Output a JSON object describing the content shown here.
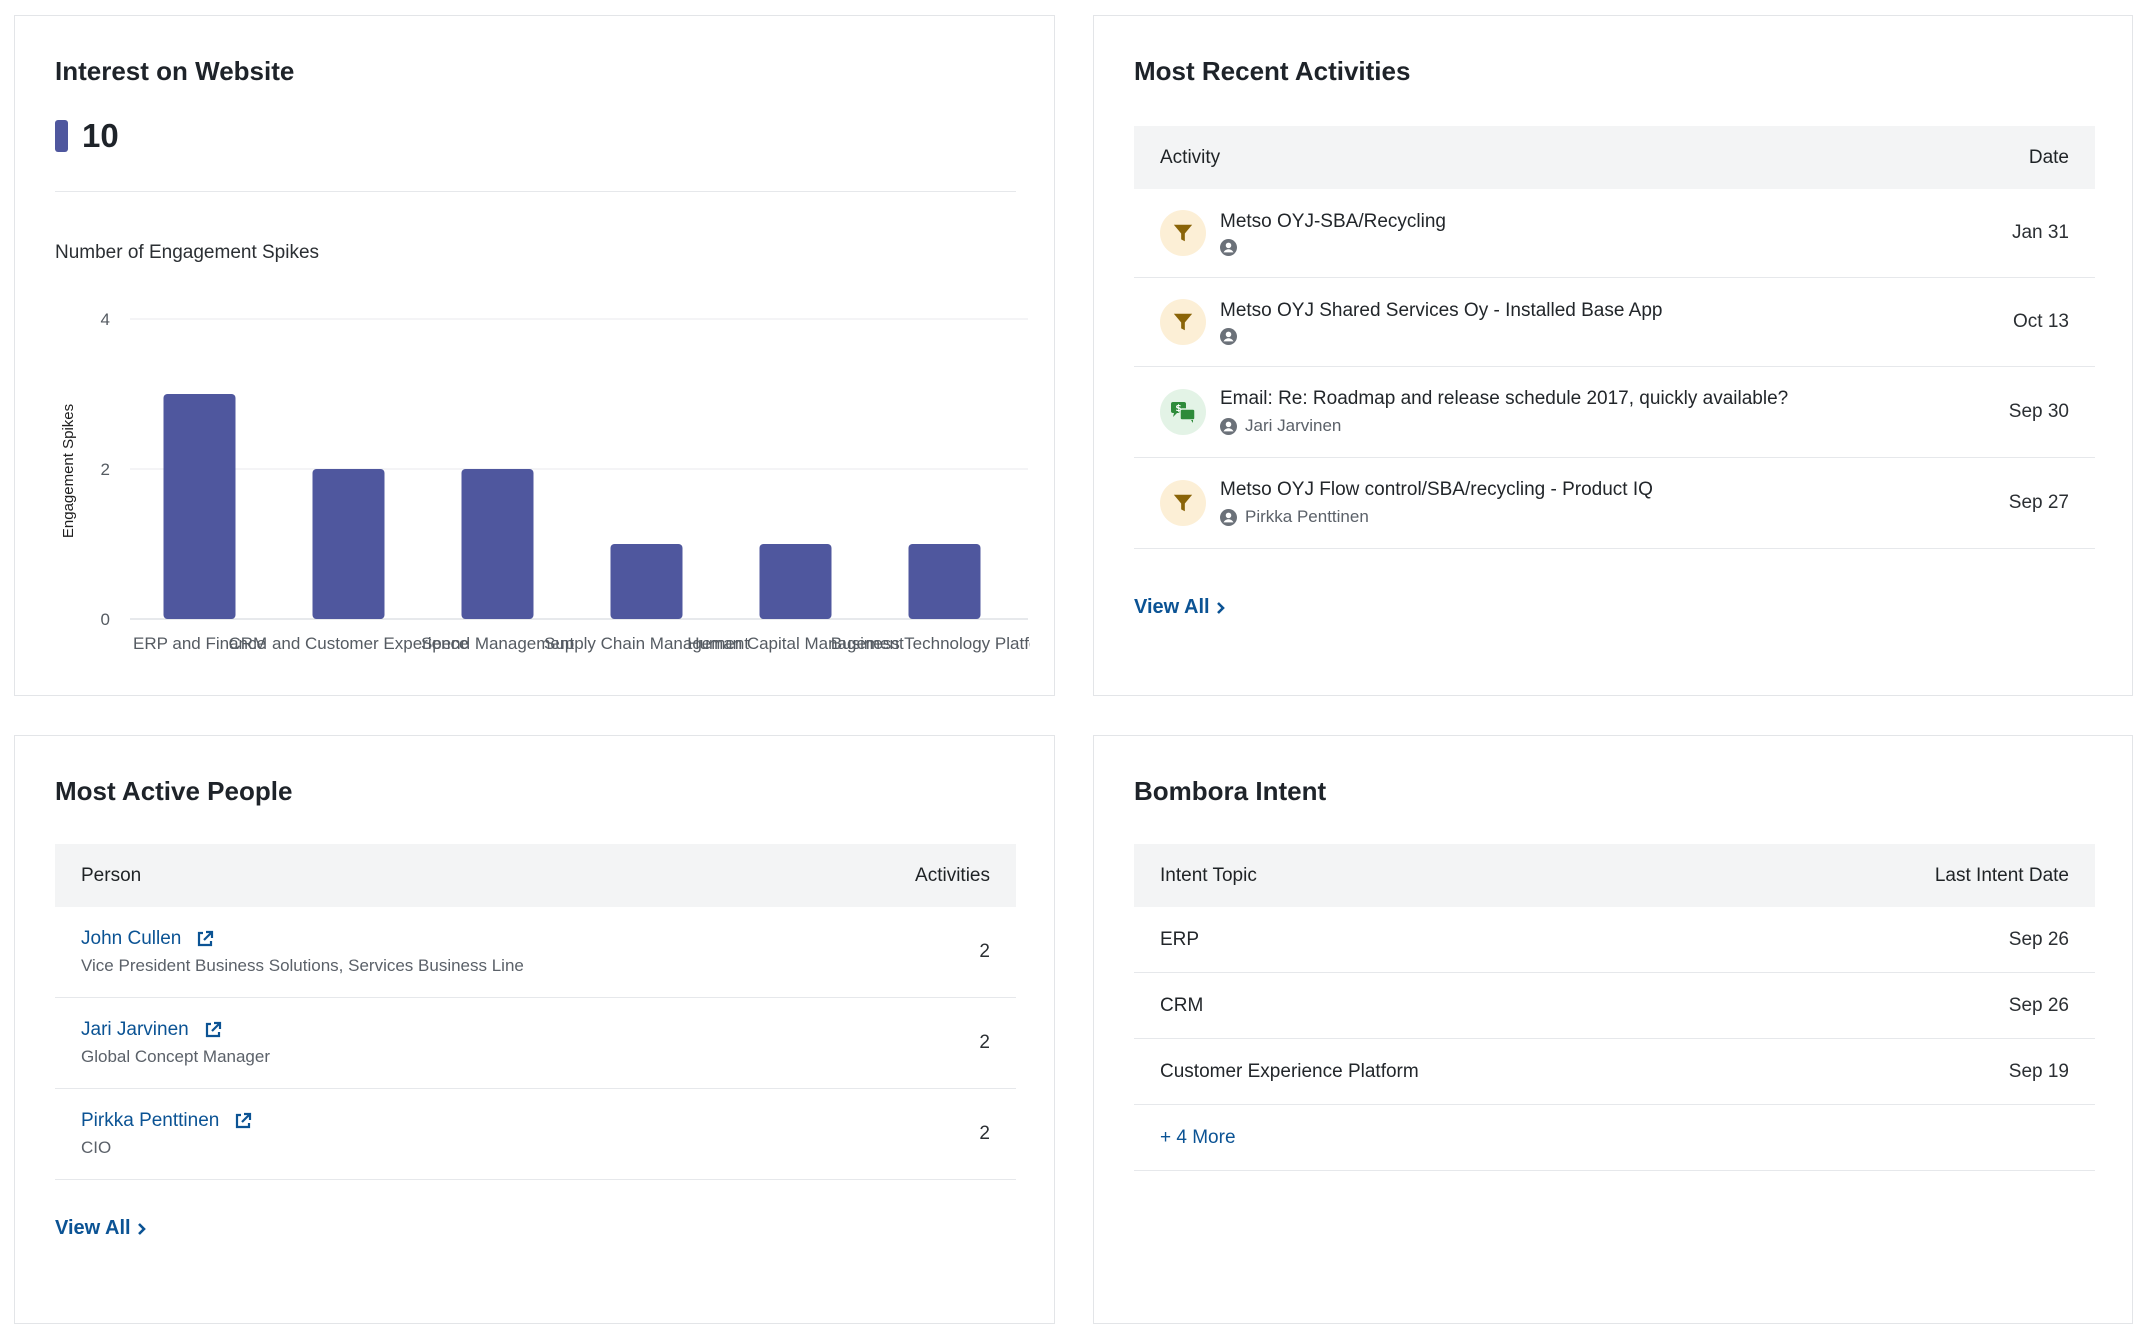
{
  "interest": {
    "title": "Interest on Website",
    "metric_value": "10",
    "chart_title": "Number of Engagement Spikes"
  },
  "chart_data": {
    "type": "bar",
    "title": "Number of Engagement Spikes",
    "categories": [
      "ERP and Finance",
      "CRM and Customer Experience",
      "Spend Management",
      "Supply Chain Management",
      "Human Capital Management",
      "Business Technology Platform"
    ],
    "series": [
      {
        "values": [
          3,
          2,
          2,
          1,
          1,
          1
        ]
      }
    ],
    "xlabel": "",
    "ylabel": "Engagement Spikes",
    "ylim": [
      0,
      4
    ],
    "yticks": [
      0,
      2,
      4
    ],
    "grid": true,
    "color": "#4f579e"
  },
  "activities": {
    "title": "Most Recent Activities",
    "col_activity": "Activity",
    "col_date": "Date",
    "rows": [
      {
        "icon": "funnel-icon",
        "title": "Metso OYJ-SBA/Recycling",
        "person": "",
        "date": "Jan 31"
      },
      {
        "icon": "funnel-icon",
        "title": "Metso OYJ Shared Services Oy - Installed Base App",
        "person": "",
        "date": "Oct 13"
      },
      {
        "icon": "email-icon",
        "title": "Email: Re: Roadmap and release schedule 2017, quickly available?",
        "person": "Jari Jarvinen",
        "date": "Sep 30"
      },
      {
        "icon": "funnel-icon",
        "title": "Metso OYJ Flow control/SBA/recycling - Product IQ",
        "person": "Pirkka Penttinen",
        "date": "Sep 27"
      }
    ],
    "view_all": "View All"
  },
  "people": {
    "title": "Most Active People",
    "col_person": "Person",
    "col_activities": "Activities",
    "rows": [
      {
        "name": "John Cullen",
        "role": "Vice President Business Solutions, Services Business Line",
        "count": "2"
      },
      {
        "name": "Jari Jarvinen",
        "role": "Global Concept Manager",
        "count": "2"
      },
      {
        "name": "Pirkka Penttinen",
        "role": "CIO",
        "count": "2"
      }
    ],
    "view_all": "View All"
  },
  "bombora": {
    "title": "Bombora Intent",
    "col_topic": "Intent Topic",
    "col_date": "Last Intent Date",
    "rows": [
      {
        "topic": "ERP",
        "date": "Sep 26"
      },
      {
        "topic": "CRM",
        "date": "Sep 26"
      },
      {
        "topic": "Customer Experience Platform",
        "date": "Sep 19"
      }
    ],
    "more": "+ 4 More"
  },
  "colors": {
    "accent": "#4f579e",
    "link": "#0b5394",
    "funnel": "#8a6408",
    "funnel_bg": "#fcefd6",
    "email": "#2e8b3a",
    "email_bg": "#e3f3e6"
  }
}
